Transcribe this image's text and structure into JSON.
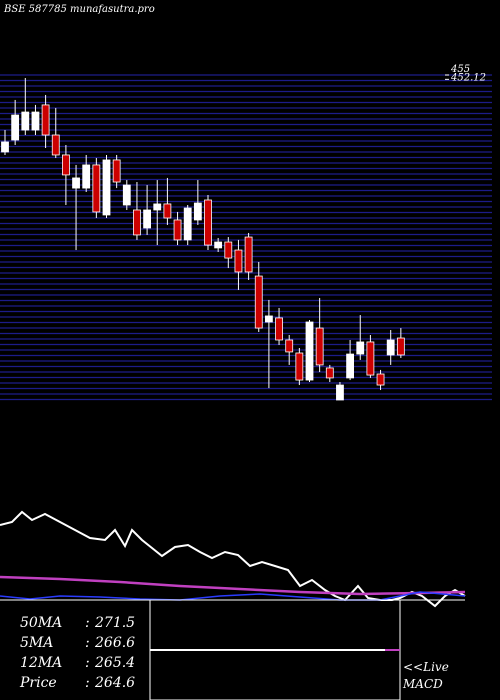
{
  "chart_data": {
    "type": "candlestick",
    "title": "BSE 587785 munafasutra.pro",
    "ylim": [
      240,
      455
    ],
    "yticks": [
      455,
      452.12
    ],
    "up_color": "#ffffff",
    "down_color": "#cc0000",
    "open": [
      404.1,
      412.0,
      418.6,
      418.6,
      435.2,
      415.3,
      402.1,
      380.2,
      380.2,
      395.5,
      362.4,
      398.8,
      369.0,
      365.7,
      353.8,
      365.7,
      369.7,
      359.1,
      345.9,
      359.1,
      372.3,
      340.6,
      344.5,
      339.2,
      347.8,
      322.0,
      291.6,
      294.3,
      279.7,
      271.1,
      253.2,
      287.6,
      261.2,
      240.0,
      254.6,
      270.4,
      278.4,
      257.2,
      269.8,
      281.0
    ],
    "high": [
      418.6,
      438.5,
      453.0,
      435.2,
      441.8,
      433.2,
      408.7,
      395.5,
      402.1,
      400.1,
      402.1,
      402.1,
      385.5,
      384.2,
      382.2,
      385.5,
      386.9,
      364.4,
      369.0,
      385.5,
      375.6,
      347.2,
      347.8,
      345.9,
      350.5,
      331.3,
      306.2,
      300.9,
      283.0,
      274.4,
      292.9,
      307.5,
      263.2,
      251.9,
      279.7,
      296.2,
      283.0,
      259.9,
      286.3,
      287.6
    ],
    "low": [
      402.1,
      408.7,
      415.3,
      415.3,
      406.7,
      400.1,
      369.0,
      339.2,
      377.6,
      360.4,
      360.4,
      380.2,
      365.7,
      345.9,
      349.2,
      342.5,
      355.8,
      342.5,
      342.5,
      355.8,
      339.2,
      337.9,
      327.3,
      312.8,
      319.4,
      285.0,
      247.9,
      276.4,
      263.2,
      249.9,
      251.9,
      258.5,
      251.9,
      240.0,
      253.2,
      266.5,
      254.6,
      246.6,
      263.2,
      267.8
    ],
    "close": [
      410.7,
      428.5,
      430.5,
      430.5,
      415.3,
      402.1,
      388.9,
      386.9,
      395.5,
      364.4,
      398.8,
      384.2,
      382.2,
      349.2,
      365.7,
      369.7,
      360.4,
      345.9,
      367.0,
      370.3,
      342.5,
      344.5,
      333.9,
      324.7,
      324.7,
      287.6,
      295.6,
      279.7,
      271.8,
      253.2,
      291.6,
      263.2,
      254.6,
      249.9,
      270.4,
      278.4,
      256.5,
      249.9,
      279.7,
      269.8
    ],
    "indicators": [
      {
        "label": "50MA",
        "value": 271.5
      },
      {
        "label": "5MA",
        "value": 266.6
      },
      {
        "label": "12MA",
        "value": 265.4
      },
      {
        "label": "Price",
        "value": 264.6
      }
    ],
    "live_label": "<<Live",
    "macd_label": "MACD"
  }
}
